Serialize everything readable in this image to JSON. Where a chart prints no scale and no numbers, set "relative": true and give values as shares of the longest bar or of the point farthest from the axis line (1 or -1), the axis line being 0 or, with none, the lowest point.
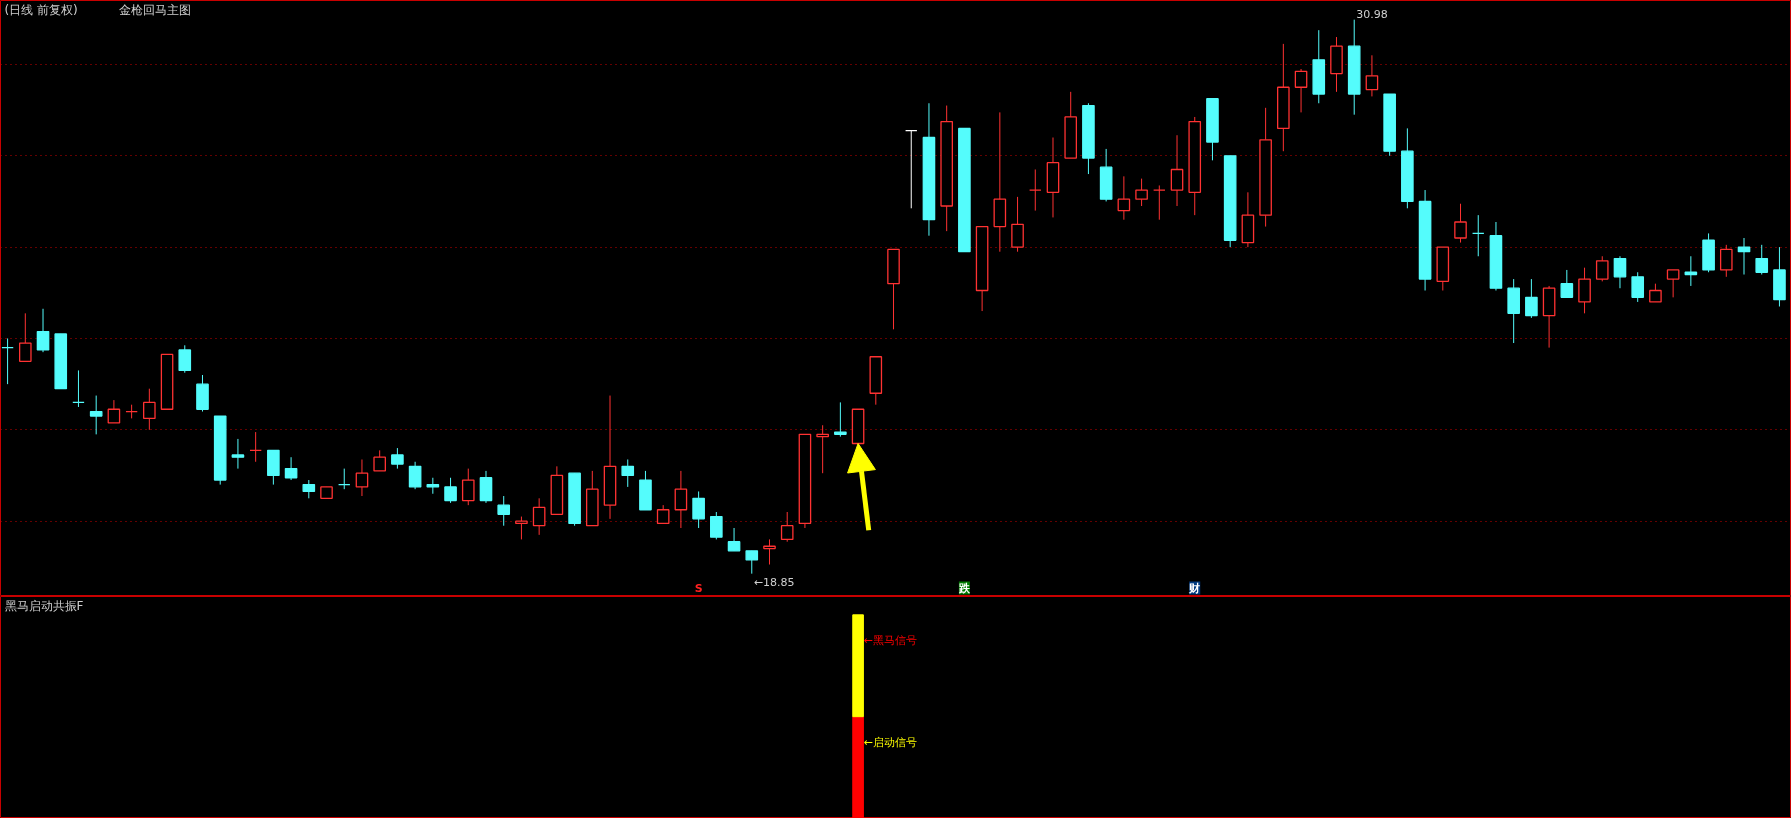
{
  "chart_data": [
    {
      "type": "candlestick",
      "title": "(日线 前复权)",
      "subtitle": "金枪回马主图",
      "categories": [
        null,
        null,
        null,
        null,
        null,
        null,
        null,
        null,
        null,
        null,
        null,
        null,
        null,
        null,
        null,
        null,
        null,
        null,
        null,
        null,
        null,
        null,
        null,
        null,
        null,
        null,
        null,
        null,
        null,
        null,
        null,
        null,
        null,
        null,
        null,
        null,
        null,
        null,
        null,
        null,
        null,
        null,
        null,
        null,
        null,
        null,
        null,
        null,
        null,
        null,
        null,
        null,
        null,
        null,
        null,
        null,
        null,
        null,
        null,
        null,
        null,
        null,
        null,
        null,
        null,
        null,
        null,
        null,
        null,
        null,
        null,
        null,
        null,
        null,
        null,
        null,
        null,
        null,
        null,
        null,
        null,
        null,
        null,
        null,
        null,
        null,
        null,
        null,
        null,
        null,
        null,
        null,
        null,
        null,
        null,
        null,
        null,
        null,
        null,
        null,
        null
      ],
      "ohlc": [
        [
          23.8,
          24.0,
          23.0,
          23.8
        ],
        [
          23.5,
          24.55,
          23.5,
          23.9
        ],
        [
          24.15,
          24.65,
          23.7,
          23.75
        ],
        [
          24.1,
          24.1,
          22.9,
          22.9
        ],
        [
          22.6,
          23.3,
          22.5,
          22.6
        ],
        [
          22.4,
          22.75,
          21.9,
          22.3
        ],
        [
          22.15,
          22.65,
          22.15,
          22.45
        ],
        [
          22.4,
          22.55,
          22.25,
          22.4
        ],
        [
          22.25,
          22.9,
          22.0,
          22.6
        ],
        [
          22.45,
          23.65,
          22.45,
          23.65
        ],
        [
          23.75,
          23.85,
          23.25,
          23.3
        ],
        [
          23.0,
          23.2,
          22.4,
          22.45
        ],
        [
          22.3,
          22.3,
          20.8,
          20.9
        ],
        [
          21.45,
          21.8,
          21.15,
          21.4
        ],
        [
          21.55,
          21.95,
          21.3,
          21.55
        ],
        [
          21.55,
          21.55,
          20.8,
          21.0
        ],
        [
          21.15,
          21.4,
          20.9,
          20.95
        ],
        [
          20.8,
          20.9,
          20.5,
          20.65
        ],
        [
          20.5,
          20.75,
          20.5,
          20.75
        ],
        [
          20.8,
          21.15,
          20.7,
          20.8
        ],
        [
          20.75,
          21.35,
          20.55,
          21.05
        ],
        [
          21.1,
          21.55,
          21.1,
          21.4
        ],
        [
          21.45,
          21.6,
          21.15,
          21.25
        ],
        [
          21.2,
          21.3,
          20.7,
          20.75
        ],
        [
          20.8,
          20.95,
          20.6,
          20.75
        ],
        [
          20.75,
          20.95,
          20.4,
          20.45
        ],
        [
          20.45,
          21.15,
          20.35,
          20.9
        ],
        [
          20.95,
          21.1,
          20.4,
          20.45
        ],
        [
          20.35,
          20.55,
          19.9,
          20.15
        ],
        [
          19.95,
          20.1,
          19.6,
          20.0
        ],
        [
          19.9,
          20.5,
          19.7,
          20.3
        ],
        [
          20.15,
          21.2,
          20.15,
          21.0
        ],
        [
          21.05,
          21.05,
          19.9,
          19.95
        ],
        [
          19.9,
          21.1,
          19.9,
          20.7
        ],
        [
          20.35,
          22.75,
          20.05,
          21.2
        ],
        [
          21.2,
          21.35,
          20.75,
          21.0
        ],
        [
          20.9,
          21.1,
          20.25,
          20.25
        ],
        [
          19.95,
          20.35,
          19.95,
          20.25
        ],
        [
          20.25,
          21.1,
          19.85,
          20.7
        ],
        [
          20.5,
          20.65,
          19.85,
          20.05
        ],
        [
          20.1,
          20.2,
          19.6,
          19.65
        ],
        [
          19.55,
          19.85,
          19.35,
          19.35
        ],
        [
          19.35,
          19.35,
          18.85,
          19.15
        ],
        [
          19.4,
          19.6,
          19.05,
          19.45
        ],
        [
          19.6,
          20.2,
          19.55,
          19.9
        ],
        [
          19.95,
          21.9,
          19.85,
          21.9
        ],
        [
          21.85,
          22.1,
          21.05,
          21.9
        ],
        [
          21.95,
          22.6,
          21.85,
          21.9
        ],
        [
          21.7,
          22.45,
          21.7,
          22.45
        ],
        [
          22.8,
          23.6,
          22.55,
          23.6
        ],
        [
          25.2,
          25.95,
          24.2,
          25.95
        ],
        [
          28.55,
          28.55,
          26.85,
          28.55
        ],
        [
          28.4,
          29.15,
          26.25,
          26.6
        ],
        [
          26.9,
          29.1,
          26.35,
          28.75
        ],
        [
          28.6,
          28.6,
          25.9,
          25.9
        ],
        [
          25.05,
          26.45,
          24.6,
          26.45
        ],
        [
          26.45,
          28.95,
          25.9,
          27.05
        ],
        [
          26.0,
          27.1,
          25.9,
          26.5
        ],
        [
          27.25,
          27.7,
          26.8,
          27.25
        ],
        [
          27.2,
          28.4,
          26.65,
          27.85
        ],
        [
          27.95,
          29.4,
          27.95,
          28.85
        ],
        [
          29.1,
          29.15,
          27.6,
          27.95
        ],
        [
          27.75,
          28.15,
          27.0,
          27.05
        ],
        [
          26.8,
          27.55,
          26.6,
          27.05
        ],
        [
          27.05,
          27.5,
          26.9,
          27.25
        ],
        [
          27.25,
          27.35,
          26.6,
          27.25
        ],
        [
          27.25,
          28.45,
          26.9,
          27.7
        ],
        [
          27.2,
          28.85,
          26.7,
          28.75
        ],
        [
          29.25,
          29.25,
          27.9,
          28.3
        ],
        [
          28.0,
          28.0,
          26.0,
          26.15
        ],
        [
          26.1,
          27.2,
          26.0,
          26.7
        ],
        [
          26.7,
          29.05,
          26.45,
          28.35
        ],
        [
          28.6,
          30.45,
          28.1,
          29.5
        ],
        [
          29.5,
          29.9,
          28.95,
          29.85
        ],
        [
          30.1,
          30.75,
          29.15,
          29.35
        ],
        [
          29.8,
          30.6,
          29.4,
          30.4
        ],
        [
          30.4,
          30.98,
          28.9,
          29.35
        ],
        [
          29.45,
          30.2,
          29.3,
          29.75
        ],
        [
          29.35,
          29.35,
          28.0,
          28.1
        ],
        [
          28.1,
          28.6,
          26.85,
          27.0
        ],
        [
          27.0,
          27.25,
          25.05,
          25.3
        ],
        [
          25.25,
          26.0,
          25.05,
          26.0
        ],
        [
          26.2,
          26.95,
          26.1,
          26.55
        ],
        [
          26.3,
          26.7,
          25.8,
          26.3
        ],
        [
          26.25,
          26.55,
          25.05,
          25.1
        ],
        [
          25.1,
          25.3,
          23.9,
          24.55
        ],
        [
          24.9,
          25.3,
          24.45,
          24.5
        ],
        [
          24.5,
          25.15,
          23.8,
          25.1
        ],
        [
          25.2,
          25.5,
          24.9,
          24.9
        ],
        [
          24.8,
          25.55,
          24.55,
          25.3
        ],
        [
          25.3,
          25.8,
          25.25,
          25.7
        ],
        [
          25.75,
          25.8,
          25.1,
          25.35
        ],
        [
          25.35,
          25.45,
          24.8,
          24.9
        ],
        [
          24.8,
          25.2,
          24.8,
          25.05
        ],
        [
          25.3,
          25.5,
          24.9,
          25.5
        ],
        [
          25.45,
          25.8,
          25.15,
          25.4
        ],
        [
          26.15,
          26.3,
          25.45,
          25.5
        ],
        [
          25.5,
          26.05,
          25.35,
          25.95
        ],
        [
          26.0,
          26.2,
          25.4,
          25.9
        ],
        [
          25.75,
          26.05,
          25.4,
          25.45
        ],
        [
          25.5,
          26.0,
          24.7,
          24.85
        ]
      ],
      "colors": [
        "#54fcfc",
        "#ff3232",
        "#54fcfc",
        "#54fcfc",
        "#54fcfc",
        "#54fcfc",
        "#ff3232",
        "#ff3232",
        "#ff3232",
        "#ff3232",
        "#54fcfc",
        "#54fcfc",
        "#54fcfc",
        "#54fcfc",
        "#ff3232",
        "#54fcfc",
        "#54fcfc",
        "#54fcfc",
        "#ff3232",
        "#54fcfc",
        "#ff3232",
        "#ff3232",
        "#54fcfc",
        "#54fcfc",
        "#54fcfc",
        "#54fcfc",
        "#ff3232",
        "#54fcfc",
        "#54fcfc",
        "#ff3232",
        "#ff3232",
        "#ff3232",
        "#54fcfc",
        "#ff3232",
        "#ff3232",
        "#54fcfc",
        "#54fcfc",
        "#ff3232",
        "#ff3232",
        "#54fcfc",
        "#54fcfc",
        "#54fcfc",
        "#54fcfc",
        "#ff3232",
        "#ff3232",
        "#ff3232",
        "#ff3232",
        "#54fcfc",
        "#ff3232",
        "#ff3232",
        "#ff3232",
        "#ffffff",
        "#54fcfc",
        "#ff3232",
        "#54fcfc",
        "#ff3232",
        "#ff3232",
        "#ff3232",
        "#ff3232",
        "#ff3232",
        "#ff3232",
        "#54fcfc",
        "#54fcfc",
        "#ff3232",
        "#ff3232",
        "#ff3232",
        "#ff3232",
        "#ff3232",
        "#54fcfc",
        "#54fcfc",
        "#ff3232",
        "#ff3232",
        "#ff3232",
        "#ff3232",
        "#54fcfc",
        "#ff3232",
        "#54fcfc",
        "#ff3232",
        "#54fcfc",
        "#54fcfc",
        "#54fcfc",
        "#ff3232",
        "#ff3232",
        "#54fcfc",
        "#54fcfc",
        "#54fcfc",
        "#54fcfc",
        "#ff3232",
        "#54fcfc",
        "#ff3232",
        "#ff3232",
        "#54fcfc",
        "#54fcfc",
        "#ff3232",
        "#ff3232",
        "#54fcfc",
        "#54fcfc",
        "#ff3232",
        "#54fcfc",
        "#54fcfc",
        "#54fcfc"
      ],
      "ylim": [
        18.35,
        31.4
      ],
      "yticks": [
        {
          "value": 20,
          "label": null
        },
        {
          "value": 22,
          "label": null
        },
        {
          "value": 24,
          "label": null
        },
        {
          "value": 26,
          "label": null
        },
        {
          "value": 28,
          "label": null
        },
        {
          "value": 30,
          "label": null
        }
      ],
      "grid": "y",
      "tick_labels": false,
      "annotations": [
        "←18.85",
        "30.98",
        "S",
        "跌",
        "财"
      ]
    },
    {
      "type": "bar",
      "title": "黑马启动共振F",
      "stacked": true,
      "relative": true,
      "tick_labels": false,
      "categories": [
        null,
        null,
        null,
        null,
        null,
        null,
        null,
        null,
        null,
        null,
        null,
        null,
        null,
        null,
        null,
        null,
        null,
        null,
        null,
        null,
        null,
        null,
        null,
        null,
        null,
        null,
        null,
        null,
        null,
        null,
        null,
        null,
        null,
        null,
        null,
        null,
        null,
        null,
        null,
        null,
        null,
        null,
        null,
        null,
        null,
        null,
        null,
        null,
        null,
        null,
        null,
        null,
        null,
        null,
        null,
        null,
        null,
        null,
        null,
        null,
        null,
        null,
        null,
        null,
        null,
        null,
        null,
        null,
        null,
        null,
        null,
        null,
        null,
        null,
        null,
        null,
        null,
        null,
        null,
        null,
        null,
        null,
        null,
        null,
        null,
        null,
        null,
        null,
        null,
        null,
        null,
        null,
        null,
        null,
        null,
        null,
        null,
        null,
        null,
        null,
        null
      ],
      "series": [
        {
          "name": "←启动信号",
          "color": "#ff0000",
          "values": [
            null,
            null,
            null,
            null,
            null,
            null,
            null,
            null,
            null,
            null,
            null,
            null,
            null,
            null,
            null,
            null,
            null,
            null,
            null,
            null,
            null,
            null,
            null,
            null,
            null,
            null,
            null,
            null,
            null,
            null,
            null,
            null,
            null,
            null,
            null,
            null,
            null,
            null,
            null,
            null,
            null,
            null,
            null,
            null,
            null,
            null,
            null,
            null,
            0.5,
            null,
            null,
            null,
            null,
            null,
            null,
            null,
            null,
            null,
            null,
            null,
            null,
            null,
            null,
            null,
            null,
            null,
            null,
            null,
            null,
            null,
            null,
            null,
            null,
            null,
            null,
            null,
            null,
            null,
            null,
            null,
            null,
            null,
            null,
            null,
            null,
            null,
            null,
            null,
            null,
            null,
            null,
            null,
            null,
            null,
            null,
            null,
            null,
            null,
            null,
            null,
            null
          ]
        },
        {
          "name": "←黑马信号",
          "color": "#ffff00",
          "values": [
            null,
            null,
            null,
            null,
            null,
            null,
            null,
            null,
            null,
            null,
            null,
            null,
            null,
            null,
            null,
            null,
            null,
            null,
            null,
            null,
            null,
            null,
            null,
            null,
            null,
            null,
            null,
            null,
            null,
            null,
            null,
            null,
            null,
            null,
            null,
            null,
            null,
            null,
            null,
            null,
            null,
            null,
            null,
            null,
            null,
            null,
            null,
            null,
            0.5,
            null,
            null,
            null,
            null,
            null,
            null,
            null,
            null,
            null,
            null,
            null,
            null,
            null,
            null,
            null,
            null,
            null,
            null,
            null,
            null,
            null,
            null,
            null,
            null,
            null,
            null,
            null,
            null,
            null,
            null,
            null,
            null,
            null,
            null,
            null,
            null,
            null,
            null,
            null,
            null,
            null,
            null,
            null,
            null,
            null,
            null,
            null,
            null,
            null,
            null,
            null,
            null
          ]
        }
      ]
    }
  ]
}
